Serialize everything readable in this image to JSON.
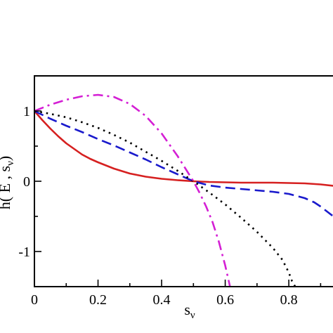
{
  "chart_data": {
    "type": "line",
    "xlabel": "s",
    "xlabel_sub": "ν",
    "ylabel": "h( E , s",
    "ylabel_sub": "ν",
    "ylabel_end": ")",
    "xlim": [
      0,
      0.95
    ],
    "ylim": [
      -1.5,
      1.5
    ],
    "x_major_ticks": [
      0,
      0.2,
      0.4,
      0.6,
      0.8
    ],
    "x_tick_labels": [
      "0",
      "0.2",
      "0.4",
      "0.6",
      "0.8"
    ],
    "x_minor_ticks": [
      0.1,
      0.3,
      0.5,
      0.7,
      0.9
    ],
    "y_major_ticks": [
      -1,
      0,
      1
    ],
    "y_tick_labels": [
      "-1",
      "0",
      "1"
    ],
    "y_minor_ticks": [
      -1.5,
      -0.5,
      0.5,
      1.5
    ],
    "grid": false,
    "legend": "none",
    "series": [
      {
        "color": "#d62020",
        "dash": "solid",
        "points": [
          [
            0,
            1.0
          ],
          [
            0.025,
            0.87
          ],
          [
            0.05,
            0.75
          ],
          [
            0.075,
            0.64
          ],
          [
            0.1,
            0.54
          ],
          [
            0.125,
            0.46
          ],
          [
            0.15,
            0.38
          ],
          [
            0.175,
            0.32
          ],
          [
            0.2,
            0.27
          ],
          [
            0.25,
            0.18
          ],
          [
            0.3,
            0.11
          ],
          [
            0.35,
            0.065
          ],
          [
            0.4,
            0.035
          ],
          [
            0.45,
            0.015
          ],
          [
            0.5,
            0.0
          ],
          [
            0.55,
            -0.01
          ],
          [
            0.6,
            -0.015
          ],
          [
            0.65,
            -0.02
          ],
          [
            0.7,
            -0.02
          ],
          [
            0.75,
            -0.02
          ],
          [
            0.8,
            -0.025
          ],
          [
            0.85,
            -0.03
          ],
          [
            0.9,
            -0.045
          ],
          [
            0.95,
            -0.07
          ]
        ]
      },
      {
        "color": "#1a1acc",
        "dash": "dashed",
        "points": [
          [
            0,
            1.0
          ],
          [
            0.05,
            0.89
          ],
          [
            0.1,
            0.79
          ],
          [
            0.15,
            0.7
          ],
          [
            0.2,
            0.6
          ],
          [
            0.25,
            0.51
          ],
          [
            0.3,
            0.41
          ],
          [
            0.35,
            0.31
          ],
          [
            0.4,
            0.2
          ],
          [
            0.45,
            0.1
          ],
          [
            0.5,
            0.0
          ],
          [
            0.55,
            -0.06
          ],
          [
            0.6,
            -0.09
          ],
          [
            0.65,
            -0.11
          ],
          [
            0.7,
            -0.13
          ],
          [
            0.75,
            -0.15
          ],
          [
            0.8,
            -0.18
          ],
          [
            0.85,
            -0.24
          ],
          [
            0.88,
            -0.3
          ],
          [
            0.9,
            -0.36
          ],
          [
            0.92,
            -0.43
          ],
          [
            0.94,
            -0.5
          ],
          [
            0.95,
            -0.55
          ]
        ]
      },
      {
        "color": "#000000",
        "dash": "dotted",
        "points": [
          [
            0,
            1.0
          ],
          [
            0.05,
            0.96
          ],
          [
            0.1,
            0.91
          ],
          [
            0.15,
            0.84
          ],
          [
            0.2,
            0.76
          ],
          [
            0.25,
            0.66
          ],
          [
            0.3,
            0.55
          ],
          [
            0.35,
            0.42
          ],
          [
            0.4,
            0.29
          ],
          [
            0.45,
            0.15
          ],
          [
            0.5,
            0.0
          ],
          [
            0.55,
            -0.16
          ],
          [
            0.6,
            -0.33
          ],
          [
            0.65,
            -0.52
          ],
          [
            0.7,
            -0.72
          ],
          [
            0.75,
            -0.95
          ],
          [
            0.78,
            -1.12
          ],
          [
            0.8,
            -1.3
          ],
          [
            0.81,
            -1.42
          ],
          [
            0.82,
            -1.5
          ]
        ]
      },
      {
        "color": "#d41fd4",
        "dash": "dashdot",
        "points": [
          [
            0,
            1.0
          ],
          [
            0.05,
            1.09
          ],
          [
            0.1,
            1.16
          ],
          [
            0.15,
            1.21
          ],
          [
            0.2,
            1.23
          ],
          [
            0.25,
            1.2
          ],
          [
            0.3,
            1.1
          ],
          [
            0.35,
            0.93
          ],
          [
            0.4,
            0.68
          ],
          [
            0.45,
            0.36
          ],
          [
            0.5,
            0.0
          ],
          [
            0.52,
            -0.17
          ],
          [
            0.54,
            -0.36
          ],
          [
            0.56,
            -0.58
          ],
          [
            0.58,
            -0.86
          ],
          [
            0.6,
            -1.2
          ],
          [
            0.615,
            -1.5
          ]
        ]
      }
    ]
  }
}
